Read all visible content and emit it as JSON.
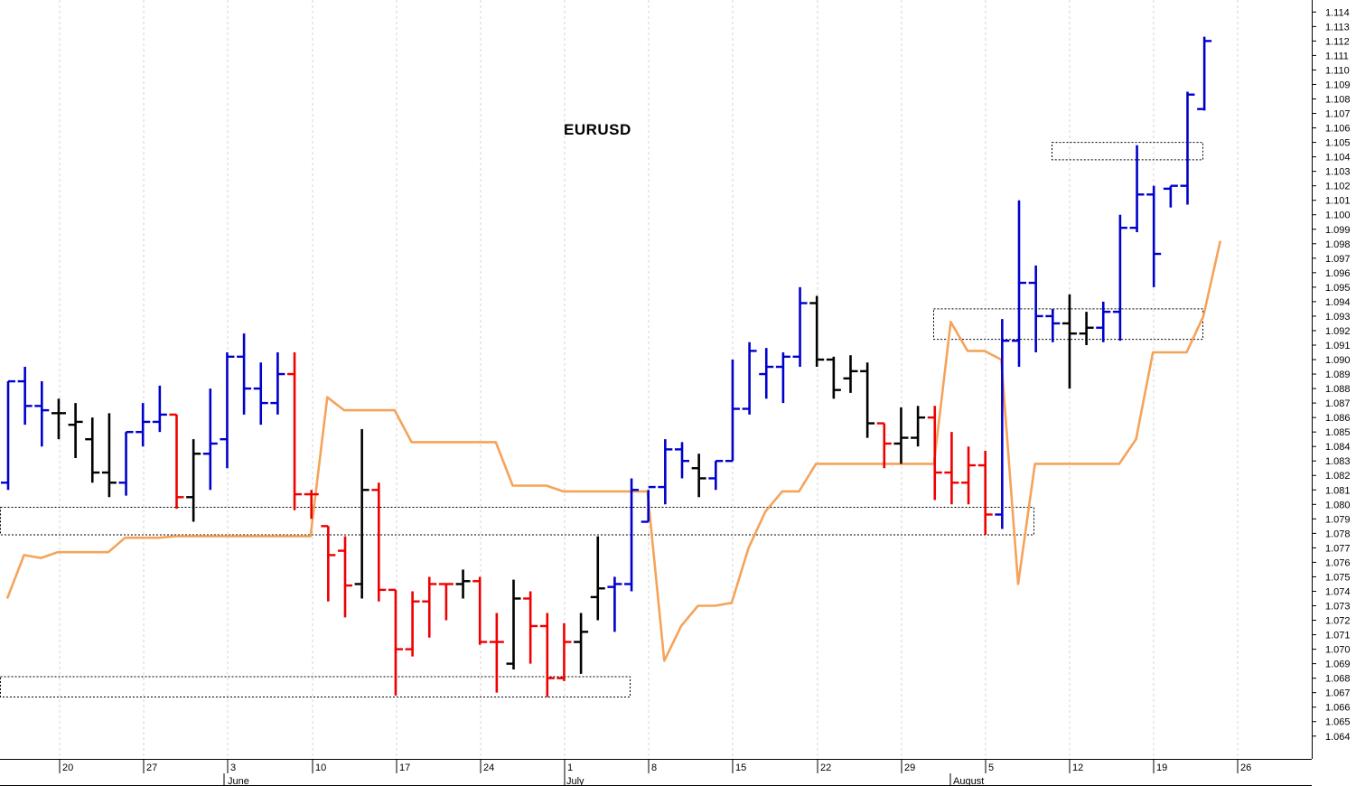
{
  "chart_data": {
    "type": "ohlc",
    "title": "EURUSD",
    "ylim": [
      1.0628,
      1.1148
    ],
    "y_ticks": [
      "1.064",
      "1.065",
      "1.066",
      "1.067",
      "1.068",
      "1.069",
      "1.070",
      "1.071",
      "1.072",
      "1.073",
      "1.074",
      "1.075",
      "1.076",
      "1.077",
      "1.078",
      "1.079",
      "1.080",
      "1.081",
      "1.082",
      "1.083",
      "1.084",
      "1.085",
      "1.086",
      "1.087",
      "1.088",
      "1.089",
      "1.090",
      "1.091",
      "1.092",
      "1.093",
      "1.094",
      "1.095",
      "1.096",
      "1.097",
      "1.098",
      "1.099",
      "1.100",
      "1.101",
      "1.102",
      "1.103",
      "1.104",
      "1.105",
      "1.106",
      "1.107",
      "1.108",
      "1.109",
      "1.110",
      "1.111",
      "1.112",
      "1.113",
      "1.114"
    ],
    "x_ticks": [
      "20",
      "27",
      "3",
      "10",
      "17",
      "24",
      "1",
      "8",
      "15",
      "22",
      "29",
      "5",
      "12",
      "19",
      "26"
    ],
    "month_labels": [
      "June",
      "July",
      "August"
    ],
    "colors": {
      "up": "#0000cc",
      "down": "#ee0000",
      "neutral": "#000000",
      "line": "#f5a35a"
    },
    "bars": [
      {
        "o": 1.0815,
        "h": 1.0885,
        "l": 1.081,
        "c": 1.0885,
        "color": "up"
      },
      {
        "o": 1.0885,
        "h": 1.0895,
        "l": 1.0855,
        "c": 1.0868,
        "color": "up"
      },
      {
        "o": 1.0868,
        "h": 1.0885,
        "l": 1.084,
        "c": 1.0865,
        "color": "up"
      },
      {
        "o": 1.0863,
        "h": 1.0873,
        "l": 1.0845,
        "c": 1.0863,
        "color": "neutral"
      },
      {
        "o": 1.0855,
        "h": 1.087,
        "l": 1.0832,
        "c": 1.0857,
        "color": "neutral"
      },
      {
        "o": 1.0845,
        "h": 1.086,
        "l": 1.0815,
        "c": 1.0822,
        "color": "neutral"
      },
      {
        "o": 1.0822,
        "h": 1.0863,
        "l": 1.0805,
        "c": 1.0815,
        "color": "neutral"
      },
      {
        "o": 1.0815,
        "h": 1.085,
        "l": 1.0806,
        "c": 1.085,
        "color": "up"
      },
      {
        "o": 1.085,
        "h": 1.087,
        "l": 1.084,
        "c": 1.0857,
        "color": "up"
      },
      {
        "o": 1.0857,
        "h": 1.0882,
        "l": 1.085,
        "c": 1.0862,
        "color": "up"
      },
      {
        "o": 1.0862,
        "h": 1.0862,
        "l": 1.0797,
        "c": 1.0805,
        "color": "down"
      },
      {
        "o": 1.0805,
        "h": 1.0845,
        "l": 1.0788,
        "c": 1.0835,
        "color": "neutral"
      },
      {
        "o": 1.0835,
        "h": 1.088,
        "l": 1.081,
        "c": 1.0842,
        "color": "up"
      },
      {
        "o": 1.0845,
        "h": 1.0905,
        "l": 1.0825,
        "c": 1.0902,
        "color": "up"
      },
      {
        "o": 1.0902,
        "h": 1.0918,
        "l": 1.0862,
        "c": 1.088,
        "color": "up"
      },
      {
        "o": 1.088,
        "h": 1.0898,
        "l": 1.0855,
        "c": 1.087,
        "color": "up"
      },
      {
        "o": 1.087,
        "h": 1.0905,
        "l": 1.0862,
        "c": 1.089,
        "color": "up"
      },
      {
        "o": 1.089,
        "h": 1.0905,
        "l": 1.0796,
        "c": 1.0807,
        "color": "down"
      },
      {
        "o": 1.0807,
        "h": 1.081,
        "l": 1.079,
        "c": 1.0807,
        "color": "down"
      },
      {
        "o": 1.0785,
        "h": 1.0785,
        "l": 1.0733,
        "c": 1.0765,
        "color": "down"
      },
      {
        "o": 1.0768,
        "h": 1.0778,
        "l": 1.0722,
        "c": 1.0744,
        "color": "down"
      },
      {
        "o": 1.0745,
        "h": 1.0852,
        "l": 1.0735,
        "c": 1.081,
        "color": "neutral"
      },
      {
        "o": 1.081,
        "h": 1.0815,
        "l": 1.0733,
        "c": 1.0741,
        "color": "down"
      },
      {
        "o": 1.0741,
        "h": 1.0741,
        "l": 1.0668,
        "c": 1.07,
        "color": "down"
      },
      {
        "o": 1.07,
        "h": 1.074,
        "l": 1.0695,
        "c": 1.0733,
        "color": "down"
      },
      {
        "o": 1.0733,
        "h": 1.075,
        "l": 1.0708,
        "c": 1.0745,
        "color": "down"
      },
      {
        "o": 1.0745,
        "h": 1.0745,
        "l": 1.072,
        "c": 1.0745,
        "color": "down"
      },
      {
        "o": 1.0745,
        "h": 1.0755,
        "l": 1.0735,
        "c": 1.0747,
        "color": "neutral"
      },
      {
        "o": 1.0747,
        "h": 1.075,
        "l": 1.0703,
        "c": 1.0705,
        "color": "down"
      },
      {
        "o": 1.0705,
        "h": 1.0725,
        "l": 1.067,
        "c": 1.0705,
        "color": "down"
      },
      {
        "o": 1.069,
        "h": 1.0748,
        "l": 1.0686,
        "c": 1.0735,
        "color": "neutral"
      },
      {
        "o": 1.0735,
        "h": 1.074,
        "l": 1.069,
        "c": 1.0716,
        "color": "down"
      },
      {
        "o": 1.0716,
        "h": 1.0725,
        "l": 1.0667,
        "c": 1.068,
        "color": "down"
      },
      {
        "o": 1.068,
        "h": 1.0718,
        "l": 1.0678,
        "c": 1.0705,
        "color": "down"
      },
      {
        "o": 1.0705,
        "h": 1.0725,
        "l": 1.0683,
        "c": 1.0712,
        "color": "neutral"
      },
      {
        "o": 1.0736,
        "h": 1.0778,
        "l": 1.072,
        "c": 1.0742,
        "color": "neutral"
      },
      {
        "o": 1.0743,
        "h": 1.075,
        "l": 1.0712,
        "c": 1.0745,
        "color": "up"
      },
      {
        "o": 1.0745,
        "h": 1.0818,
        "l": 1.074,
        "c": 1.081,
        "color": "up"
      },
      {
        "o": 1.0788,
        "h": 1.081,
        "l": 1.0788,
        "c": 1.0812,
        "color": "up"
      },
      {
        "o": 1.0812,
        "h": 1.0845,
        "l": 1.08,
        "c": 1.0838,
        "color": "up"
      },
      {
        "o": 1.0838,
        "h": 1.0843,
        "l": 1.0818,
        "c": 1.083,
        "color": "up"
      },
      {
        "o": 1.0825,
        "h": 1.0835,
        "l": 1.0805,
        "c": 1.0818,
        "color": "neutral"
      },
      {
        "o": 1.0818,
        "h": 1.083,
        "l": 1.081,
        "c": 1.083,
        "color": "up"
      },
      {
        "o": 1.083,
        "h": 1.09,
        "l": 1.083,
        "c": 1.0866,
        "color": "up"
      },
      {
        "o": 1.0866,
        "h": 1.0912,
        "l": 1.0862,
        "c": 1.0906,
        "color": "up"
      },
      {
        "o": 1.089,
        "h": 1.0908,
        "l": 1.0873,
        "c": 1.0895,
        "color": "up"
      },
      {
        "o": 1.0895,
        "h": 1.0905,
        "l": 1.087,
        "c": 1.0902,
        "color": "up"
      },
      {
        "o": 1.0902,
        "h": 1.095,
        "l": 1.0895,
        "c": 1.0939,
        "color": "up"
      },
      {
        "o": 1.0939,
        "h": 1.0944,
        "l": 1.0895,
        "c": 1.09,
        "color": "neutral"
      },
      {
        "o": 1.09,
        "h": 1.0902,
        "l": 1.0873,
        "c": 1.0879,
        "color": "neutral"
      },
      {
        "o": 1.0887,
        "h": 1.0903,
        "l": 1.0877,
        "c": 1.0892,
        "color": "neutral"
      },
      {
        "o": 1.0892,
        "h": 1.0898,
        "l": 1.0846,
        "c": 1.0856,
        "color": "neutral"
      },
      {
        "o": 1.0856,
        "h": 1.0856,
        "l": 1.0825,
        "c": 1.0842,
        "color": "down"
      },
      {
        "o": 1.0842,
        "h": 1.0867,
        "l": 1.0828,
        "c": 1.0846,
        "color": "neutral"
      },
      {
        "o": 1.0846,
        "h": 1.0868,
        "l": 1.084,
        "c": 1.086,
        "color": "neutral"
      },
      {
        "o": 1.086,
        "h": 1.0868,
        "l": 1.0803,
        "c": 1.0822,
        "color": "down"
      },
      {
        "o": 1.0822,
        "h": 1.085,
        "l": 1.08,
        "c": 1.0815,
        "color": "down"
      },
      {
        "o": 1.0815,
        "h": 1.084,
        "l": 1.08,
        "c": 1.0827,
        "color": "down"
      },
      {
        "o": 1.0827,
        "h": 1.0837,
        "l": 1.0779,
        "c": 1.0793,
        "color": "down"
      },
      {
        "o": 1.0793,
        "h": 1.0928,
        "l": 1.0783,
        "c": 1.0913,
        "color": "up"
      },
      {
        "o": 1.0913,
        "h": 1.101,
        "l": 1.0895,
        "c": 1.0953,
        "color": "up"
      },
      {
        "o": 1.0953,
        "h": 1.0965,
        "l": 1.0905,
        "c": 1.093,
        "color": "up"
      },
      {
        "o": 1.093,
        "h": 1.0935,
        "l": 1.0912,
        "c": 1.0925,
        "color": "up"
      },
      {
        "o": 1.0925,
        "h": 1.0945,
        "l": 1.088,
        "c": 1.0918,
        "color": "neutral"
      },
      {
        "o": 1.0918,
        "h": 1.0933,
        "l": 1.091,
        "c": 1.0922,
        "color": "neutral"
      },
      {
        "o": 1.0922,
        "h": 1.094,
        "l": 1.0912,
        "c": 1.0933,
        "color": "up"
      },
      {
        "o": 1.0933,
        "h": 1.1,
        "l": 1.0913,
        "c": 1.0991,
        "color": "up"
      },
      {
        "o": 1.0991,
        "h": 1.1048,
        "l": 1.0988,
        "c": 1.1014,
        "color": "up"
      },
      {
        "o": 1.1014,
        "h": 1.102,
        "l": 1.095,
        "c": 1.0973,
        "color": "up"
      },
      {
        "o": 1.1018,
        "h": 1.102,
        "l": 1.1005,
        "c": 1.102,
        "color": "up"
      },
      {
        "o": 1.102,
        "h": 1.1085,
        "l": 1.1007,
        "c": 1.1083,
        "color": "up"
      },
      {
        "o": 1.1073,
        "h": 1.1123,
        "l": 1.1072,
        "c": 1.112,
        "color": "up"
      }
    ],
    "line_series": [
      1.0735,
      1.0765,
      1.0763,
      1.0767,
      1.0767,
      1.0767,
      1.0767,
      1.0777,
      1.0777,
      1.0777,
      1.0778,
      1.0778,
      1.0778,
      1.0778,
      1.0778,
      1.0778,
      1.0778,
      1.0778,
      1.0778,
      1.0874,
      1.0865,
      1.0865,
      1.0865,
      1.0865,
      1.0843,
      1.0843,
      1.0843,
      1.0843,
      1.0843,
      1.0843,
      1.0813,
      1.0813,
      1.0813,
      1.0809,
      1.0809,
      1.0809,
      1.0809,
      1.0809,
      1.0809,
      1.0692,
      1.0716,
      1.073,
      1.073,
      1.0732,
      1.077,
      1.0795,
      1.0809,
      1.0809,
      1.0828,
      1.0828,
      1.0828,
      1.0828,
      1.0828,
      1.0828,
      1.0828,
      1.0828,
      1.0926,
      1.0906,
      1.0906,
      1.09,
      1.0745,
      1.0828,
      1.0828,
      1.0828,
      1.0828,
      1.0828,
      1.0828,
      1.0845,
      1.0905,
      1.0905,
      1.0905,
      1.093,
      1.0982
    ],
    "zones": [
      {
        "y0": 1.0935,
        "y1": 1.0914,
        "start": 1,
        "end": 1,
        "span": "late"
      },
      {
        "y0": 1.105,
        "y1": 1.1038
      },
      {
        "y0": 1.0798,
        "y1": 1.0779
      },
      {
        "y0": 1.0681,
        "y1": 1.0667
      }
    ]
  }
}
